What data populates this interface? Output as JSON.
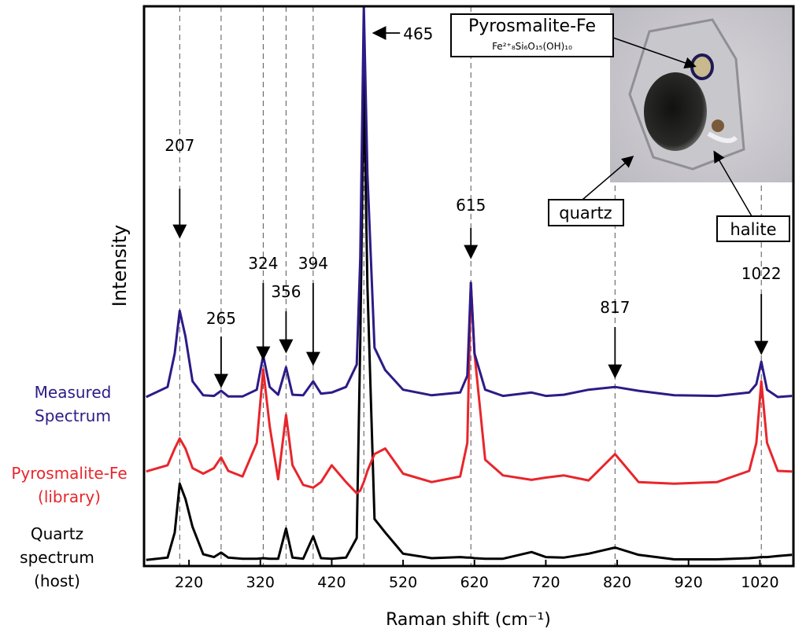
{
  "chart_data": {
    "type": "line",
    "xlabel": "Raman shift (cm⁻¹)",
    "ylabel": "Intensity",
    "xlim": [
      157,
      1067
    ],
    "ylim": [
      0,
      100
    ],
    "xticks": [
      220,
      320,
      420,
      520,
      620,
      720,
      820,
      920,
      1020
    ],
    "x": [
      160,
      190,
      200,
      207,
      215,
      225,
      240,
      255,
      265,
      275,
      295,
      315,
      324,
      333,
      345,
      356,
      365,
      380,
      394,
      405,
      420,
      440,
      455,
      460,
      465,
      470,
      480,
      495,
      520,
      560,
      600,
      610,
      615,
      620,
      635,
      660,
      700,
      720,
      745,
      780,
      817,
      850,
      900,
      960,
      1005,
      1015,
      1022,
      1030,
      1045,
      1065
    ],
    "series": [
      {
        "name": "Measured Spectrum",
        "color": "#2e1a87",
        "values": [
          30.2,
          32,
          38,
          45.6,
          41,
          33,
          30.5,
          30.4,
          31.3,
          30.3,
          30.3,
          31.5,
          37.6,
          32,
          30.6,
          35.5,
          30.6,
          30.5,
          33,
          30.8,
          31,
          32,
          36,
          55,
          100,
          70,
          39,
          35,
          31.5,
          30.5,
          31,
          34,
          50.6,
          38,
          31.5,
          30.4,
          31,
          30.4,
          30.6,
          31.5,
          32,
          31.3,
          30.5,
          30.4,
          31,
          32.5,
          36.5,
          31.5,
          30.2,
          30.4
        ]
      },
      {
        "name": "Pyrosmalite-Fe (library)",
        "color": "#e8262b",
        "values": [
          16.9,
          18,
          21,
          22.8,
          21,
          17.5,
          16.5,
          17.5,
          19.4,
          17,
          16,
          22,
          35.1,
          25,
          15.5,
          27,
          18,
          14.5,
          14,
          15,
          18,
          15,
          13,
          13.5,
          15,
          17,
          20,
          21,
          16.5,
          15,
          16,
          22,
          50.6,
          38,
          19,
          16.2,
          15.4,
          15.8,
          16.2,
          15.3,
          20,
          15,
          14.7,
          15,
          17,
          22,
          33,
          22,
          17,
          16.9
        ]
      },
      {
        "name": "Quartz spectrum (host)",
        "color": "#000000",
        "values": [
          1.1,
          1.5,
          6,
          14.7,
          12,
          7,
          2.1,
          1.6,
          2.4,
          1.5,
          1.3,
          1.3,
          1.4,
          1.3,
          1.3,
          6.7,
          1.5,
          1.3,
          5.3,
          1.4,
          1.3,
          1.5,
          5,
          40,
          87.8,
          50,
          8.4,
          6,
          2.2,
          1.4,
          1.6,
          1.5,
          1.5,
          1.4,
          1.3,
          1.3,
          2.5,
          1.6,
          1.5,
          2.2,
          3.3,
          2,
          1.2,
          1.2,
          1.4,
          1.5,
          1.6,
          1.6,
          1.8,
          2
        ]
      }
    ],
    "peaks": [
      207,
      265,
      324,
      356,
      394,
      465,
      615,
      817,
      1022
    ],
    "inset": {
      "mineral": "Pyrosmalite-Fe",
      "formula": "Fe²⁺₈Si₆O₁₅(OH)₁₀",
      "labels": [
        "quartz",
        "halite"
      ]
    }
  }
}
